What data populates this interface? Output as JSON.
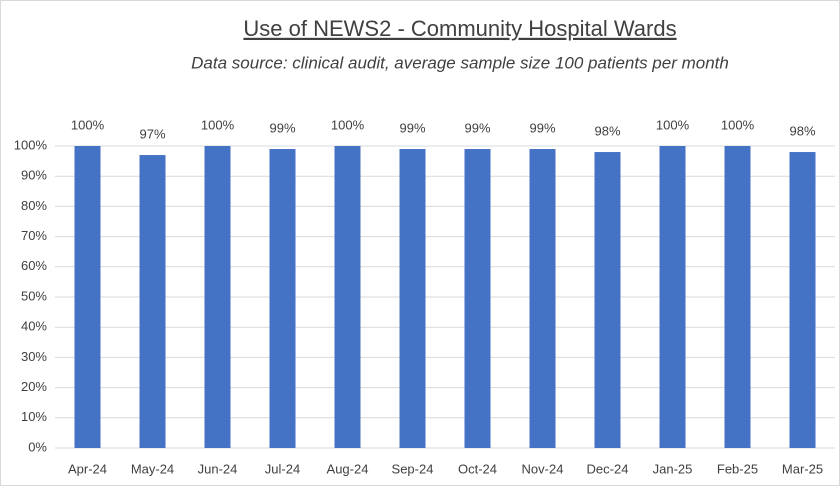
{
  "chart_data": {
    "type": "bar",
    "title": "Use of NEWS2 - Community Hospital Wards",
    "subtitle": "Data source: clinical audit, average sample size 100 patients per month",
    "categories": [
      "Apr-24",
      "May-24",
      "Jun-24",
      "Jul-24",
      "Aug-24",
      "Sep-24",
      "Oct-24",
      "Nov-24",
      "Dec-24",
      "Jan-25",
      "Feb-25",
      "Mar-25"
    ],
    "values": [
      100,
      97,
      100,
      99,
      100,
      99,
      99,
      99,
      98,
      100,
      100,
      98
    ],
    "value_labels": [
      "100%",
      "97%",
      "100%",
      "99%",
      "100%",
      "99%",
      "99%",
      "99%",
      "98%",
      "100%",
      "100%",
      "98%"
    ],
    "color": "#4472c4",
    "ylim": [
      0,
      100
    ],
    "yticks": [
      {
        "value": 0,
        "label": "0%"
      },
      {
        "value": 10,
        "label": "10%"
      },
      {
        "value": 20,
        "label": "20%"
      },
      {
        "value": 30,
        "label": "30%"
      },
      {
        "value": 40,
        "label": "40%"
      },
      {
        "value": 50,
        "label": "50%"
      },
      {
        "value": 60,
        "label": "60%"
      },
      {
        "value": 70,
        "label": "70%"
      },
      {
        "value": 80,
        "label": "80%"
      },
      {
        "value": 90,
        "label": "90%"
      },
      {
        "value": 100,
        "label": "100%"
      }
    ],
    "grid": true
  }
}
